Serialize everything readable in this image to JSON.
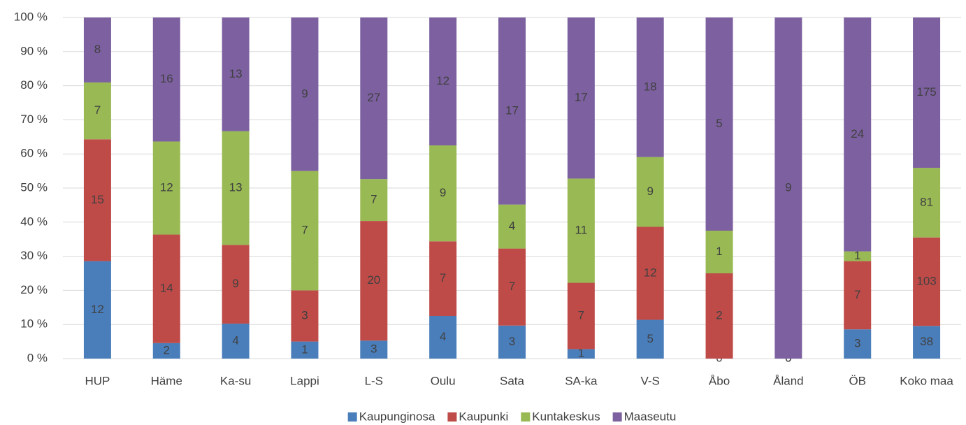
{
  "chart_data": {
    "type": "bar",
    "stacking": "percent",
    "categories": [
      "HUP",
      "Häme",
      "Ka-su",
      "Lappi",
      "L-S",
      "Oulu",
      "Sata",
      "SA-ka",
      "V-S",
      "Åbo",
      "Åland",
      "ÖB",
      "Koko maa"
    ],
    "series": [
      {
        "name": "Kaupunginosa",
        "color": "#4a7ebb",
        "values": [
          12,
          2,
          4,
          1,
          3,
          4,
          3,
          1,
          5,
          0,
          0,
          3,
          38
        ]
      },
      {
        "name": "Kaupunki",
        "color": "#be4b48",
        "values": [
          15,
          14,
          9,
          3,
          20,
          7,
          7,
          7,
          12,
          2,
          0,
          7,
          103
        ]
      },
      {
        "name": "Kuntakeskus",
        "color": "#98b954",
        "values": [
          7,
          12,
          13,
          7,
          7,
          9,
          4,
          11,
          9,
          1,
          0,
          1,
          81
        ]
      },
      {
        "name": "Maaseutu",
        "color": "#7d60a0",
        "values": [
          8,
          16,
          13,
          9,
          27,
          12,
          17,
          17,
          18,
          5,
          9,
          24,
          175
        ]
      }
    ],
    "ylim": [
      0,
      100
    ],
    "yticks": [
      {
        "value": 0,
        "label": "0 %"
      },
      {
        "value": 10,
        "label": "10 %"
      },
      {
        "value": 20,
        "label": "20 %"
      },
      {
        "value": 30,
        "label": "30 %"
      },
      {
        "value": 40,
        "label": "40 %"
      },
      {
        "value": 50,
        "label": "50 %"
      },
      {
        "value": 60,
        "label": "60 %"
      },
      {
        "value": 70,
        "label": "70 %"
      },
      {
        "value": 80,
        "label": "80 %"
      },
      {
        "value": 90,
        "label": "90 %"
      },
      {
        "value": 100,
        "label": "100 %"
      }
    ],
    "grid": true,
    "legend": "bottom"
  }
}
